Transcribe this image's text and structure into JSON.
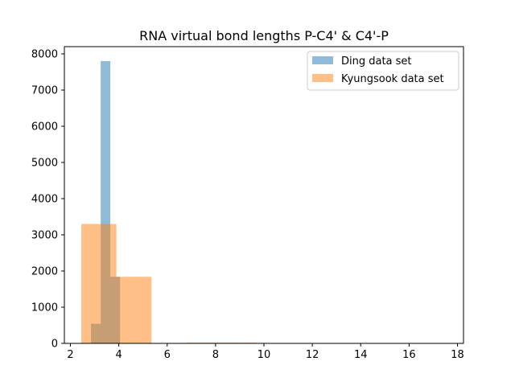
{
  "chart_data": {
    "type": "histogram",
    "title": "RNA virtual bond lengths P-C4' & C4'-P",
    "xlabel": "",
    "ylabel": "",
    "xlim": [
      1.75,
      18.25
    ],
    "ylim": [
      0,
      8200
    ],
    "xticks": [
      2,
      4,
      6,
      8,
      10,
      12,
      14,
      16,
      18
    ],
    "yticks": [
      0,
      1000,
      2000,
      3000,
      4000,
      5000,
      6000,
      7000,
      8000
    ],
    "grid": false,
    "legend_position": "top-right",
    "series": [
      {
        "name": "Ding data set",
        "color": "#1f77b4",
        "alpha": 0.5,
        "bins": [
          {
            "x0": 2.85,
            "x1": 3.25,
            "count": 540
          },
          {
            "x0": 3.25,
            "x1": 3.65,
            "count": 7800
          },
          {
            "x0": 3.65,
            "x1": 4.05,
            "count": 1840
          }
        ]
      },
      {
        "name": "Kyungsook data set",
        "color": "#ff7f0e",
        "alpha": 0.5,
        "bins": [
          {
            "x0": 2.45,
            "x1": 3.9,
            "count": 3300
          },
          {
            "x0": 3.9,
            "x1": 5.35,
            "count": 1840
          },
          {
            "x0": 5.35,
            "x1": 6.8,
            "count": 0
          },
          {
            "x0": 6.8,
            "x1": 8.25,
            "count": 20
          },
          {
            "x0": 8.25,
            "x1": 9.7,
            "count": 20
          },
          {
            "x0": 9.7,
            "x1": 11.15,
            "count": 0
          },
          {
            "x0": 11.15,
            "x1": 12.6,
            "count": 0
          },
          {
            "x0": 12.6,
            "x1": 14.05,
            "count": 0
          },
          {
            "x0": 14.05,
            "x1": 15.5,
            "count": 0
          },
          {
            "x0": 15.5,
            "x1": 16.95,
            "count": 0
          },
          {
            "x0": 16.95,
            "x1": 18.4,
            "count": 0
          }
        ]
      }
    ]
  }
}
